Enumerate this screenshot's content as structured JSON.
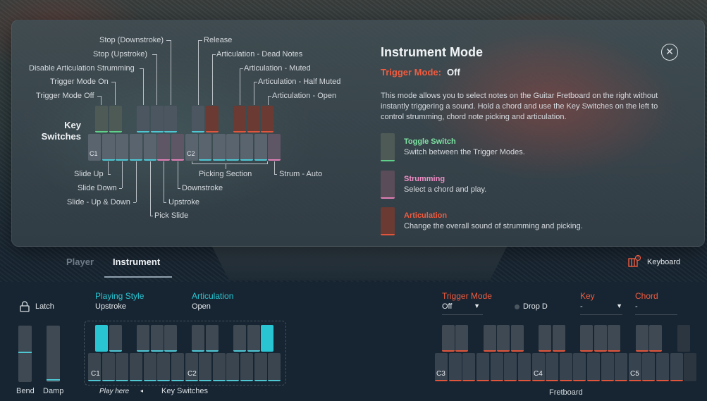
{
  "overlay": {
    "title": "Instrument Mode",
    "trigger_mode_label": "Trigger Mode:",
    "trigger_mode_value": "Off",
    "description": "This mode allows you to select notes on the Guitar Fretboard on the right without instantly triggering a sound. Hold a chord and use the Key Switches on the left to control strumming, chord note picking and articulation.",
    "close_icon": "close-icon",
    "key_switches_title": "Key Switches",
    "c1": "C1",
    "c2": "C2",
    "labels_top_left": [
      "Stop (Downstroke)",
      "Stop (Upstroke)",
      "Disable Articulation Strumming",
      "Trigger Mode On",
      "Trigger Mode Off"
    ],
    "labels_top_right": [
      "Release",
      "Articulation - Dead Notes",
      "Articulation - Muted",
      "Articulation - Half Muted",
      "Articulation - Open"
    ],
    "labels_bottom": [
      "Slide Up",
      "Slide Down",
      "Slide - Up & Down",
      "Pick Slide",
      "Upstroke",
      "Downstroke",
      "Picking Section",
      "Strum - Auto"
    ],
    "legend": [
      {
        "title": "Toggle Switch",
        "desc": "Switch between the Trigger Modes.",
        "color": "#5fd08a"
      },
      {
        "title": "Strumming",
        "desc": "Select a chord and play.",
        "color": "#e07fb5"
      },
      {
        "title": "Articulation",
        "desc": "Change the overall sound of strumming and picking.",
        "color": "#e0553b"
      }
    ]
  },
  "tabs": {
    "player": "Player",
    "instrument": "Instrument",
    "active": "Instrument"
  },
  "keyboard_button": {
    "label": "Keyboard",
    "icon": "keyboard-icon"
  },
  "latch": {
    "label": "Latch",
    "icon": "lock-icon"
  },
  "playing_style": {
    "label": "Playing Style",
    "value": "Upstroke"
  },
  "articulation": {
    "label": "Articulation",
    "value": "Open"
  },
  "sliders": {
    "bend": "Bend",
    "damp": "Damp"
  },
  "key_switches": {
    "c1": "C1",
    "c2": "C2",
    "label": "Key Switches",
    "hint": "Play here"
  },
  "trigger_mode": {
    "label": "Trigger Mode",
    "value": "Off"
  },
  "drop_d": {
    "label": "Drop D"
  },
  "key": {
    "label": "Key",
    "value": "-"
  },
  "chord": {
    "label": "Chord",
    "value": "-"
  },
  "fretboard": {
    "c3": "C3",
    "c4": "C4",
    "c5": "C5",
    "label": "Fretboard"
  },
  "colors": {
    "accent_cyan": "#29c5d2",
    "accent_red": "#f05b3f",
    "green": "#5fd08a",
    "pink": "#e07fb5"
  }
}
